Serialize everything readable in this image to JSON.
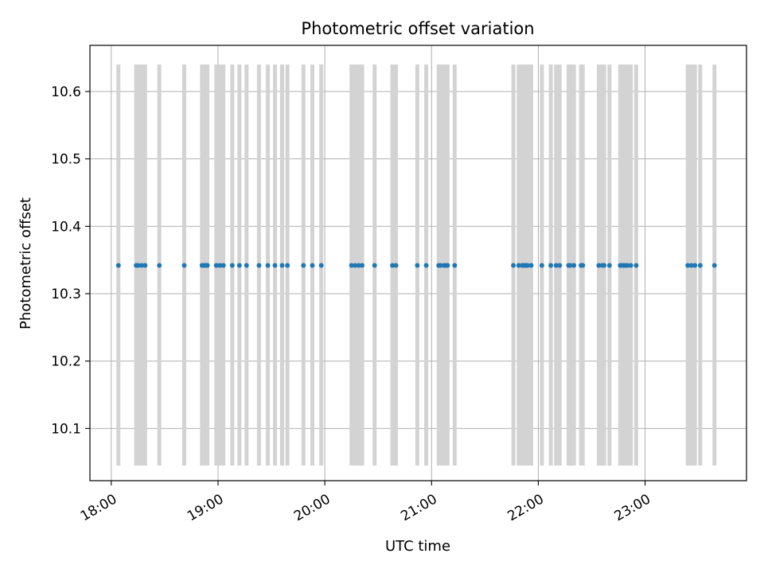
{
  "chart_data": {
    "type": "scatter",
    "title": "Photometric offset variation",
    "xlabel": "UTC time",
    "ylabel": "Photometric offset",
    "x_unit": "UTC hours",
    "xlim": [
      "17:48",
      "23:57"
    ],
    "ylim": [
      10.0225,
      10.6685
    ],
    "x_ticks": [
      "18:00",
      "19:00",
      "20:00",
      "21:00",
      "22:00",
      "23:00"
    ],
    "y_ticks": [
      "10.1",
      "10.2",
      "10.3",
      "10.4",
      "10.5",
      "10.6"
    ],
    "grid": true,
    "legend": "none",
    "colors": {
      "points": "#1f77b4",
      "errorbars": "#d3d3d3",
      "grid": "#b0b0b0"
    },
    "errorbar_range": [
      10.045,
      10.64
    ],
    "series": [
      {
        "y": 10.342,
        "x": [
          "18:04",
          "18:14",
          "18:15",
          "18:17",
          "18:19",
          "18:27",
          "18:41",
          "18:51",
          "18:52",
          "18:53",
          "18:54",
          "18:59",
          "19:01",
          "19:03",
          "19:08",
          "19:12",
          "19:16",
          "19:23",
          "19:28",
          "19:32",
          "19:36",
          "19:39",
          "19:48",
          "19:53",
          "19:58",
          "20:15",
          "20:17",
          "20:19",
          "20:21",
          "20:28",
          "20:38",
          "20:40",
          "20:52",
          "20:57",
          "21:04",
          "21:05",
          "21:07",
          "21:08",
          "21:09",
          "21:13",
          "21:46",
          "21:49",
          "21:51",
          "21:52",
          "21:53",
          "21:54",
          "21:56",
          "22:02",
          "22:07",
          "22:10",
          "22:12",
          "22:17",
          "22:18",
          "22:20",
          "22:24",
          "22:25",
          "22:34",
          "22:36",
          "22:37",
          "22:40",
          "22:46",
          "22:47",
          "22:48",
          "22:49",
          "22:50",
          "22:52",
          "22:55",
          "23:24",
          "23:26",
          "23:28",
          "23:31",
          "23:39"
        ]
      }
    ]
  }
}
